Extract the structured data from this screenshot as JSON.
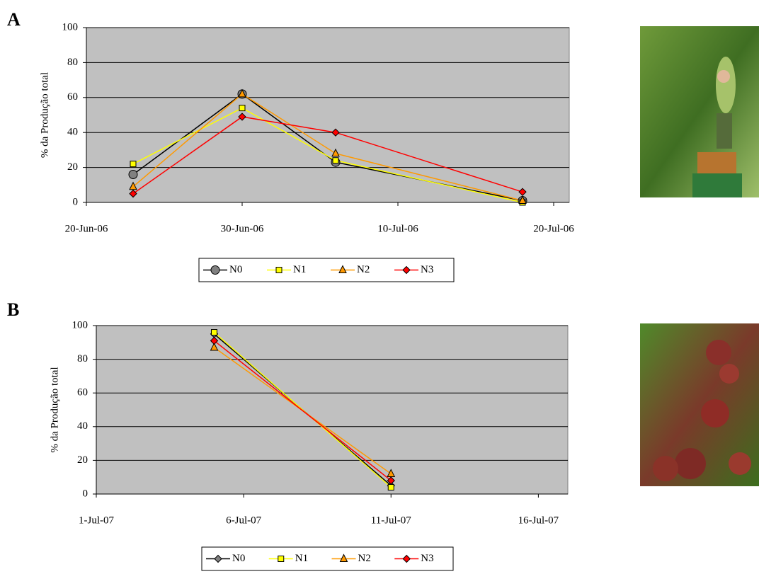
{
  "chart_data": [
    {
      "type": "line",
      "panel": "A",
      "y_label": "% da Produção total",
      "x": [
        "2006-06-23",
        "2006-06-30",
        "2006-07-06",
        "2006-07-18"
      ],
      "xlim": [
        "2006-06-20",
        "2006-07-21"
      ],
      "xticks": [
        {
          "value": "2006-06-20",
          "label": "20-Jun-06"
        },
        {
          "value": "2006-06-30",
          "label": "30-Jun-06"
        },
        {
          "value": "2006-07-10",
          "label": "10-Jul-06"
        },
        {
          "value": "2006-07-20",
          "label": "20-Jul-06"
        }
      ],
      "ylim": [
        0,
        100
      ],
      "yticks": [
        0,
        20,
        40,
        60,
        80,
        100
      ],
      "grid": true,
      "series": [
        {
          "name": "N0",
          "color": "#000000",
          "marker": "circle",
          "marker_color": "#808080",
          "values": [
            16,
            62,
            23,
            1
          ]
        },
        {
          "name": "N1",
          "color": "#ffff00",
          "marker": "square",
          "marker_color": "#ffff00",
          "values": [
            22,
            54,
            24,
            0
          ]
        },
        {
          "name": "N2",
          "color": "#ff9900",
          "marker": "triangle",
          "marker_color": "#ff9900",
          "values": [
            9,
            62,
            28,
            1
          ]
        },
        {
          "name": "N3",
          "color": "#ff0000",
          "marker": "diamond",
          "marker_color": "#ff0000",
          "values": [
            5,
            49,
            40,
            6
          ]
        }
      ]
    },
    {
      "type": "line",
      "panel": "B",
      "y_label": "% da Produção total",
      "x": [
        "2007-07-05",
        "2007-07-11"
      ],
      "xlim": [
        "2007-07-01",
        "2007-07-17"
      ],
      "xticks": [
        {
          "value": "2007-07-01",
          "label": "1-Jul-07"
        },
        {
          "value": "2007-07-06",
          "label": "6-Jul-07"
        },
        {
          "value": "2007-07-11",
          "label": "11-Jul-07"
        },
        {
          "value": "2007-07-16",
          "label": "16-Jul-07"
        }
      ],
      "ylim": [
        0,
        100
      ],
      "yticks": [
        0,
        20,
        40,
        60,
        80,
        100
      ],
      "grid": true,
      "series": [
        {
          "name": "N0",
          "color": "#000000",
          "marker": "diamond",
          "marker_color": "#808080",
          "values": [
            95,
            5
          ]
        },
        {
          "name": "N1",
          "color": "#ffff00",
          "marker": "square",
          "marker_color": "#ffff00",
          "values": [
            96,
            4
          ]
        },
        {
          "name": "N2",
          "color": "#ff9900",
          "marker": "triangle",
          "marker_color": "#ff9900",
          "values": [
            87,
            12
          ]
        },
        {
          "name": "N3",
          "color": "#ff0000",
          "marker": "diamond",
          "marker_color": "#ff0000",
          "values": [
            91,
            8
          ]
        }
      ]
    }
  ]
}
